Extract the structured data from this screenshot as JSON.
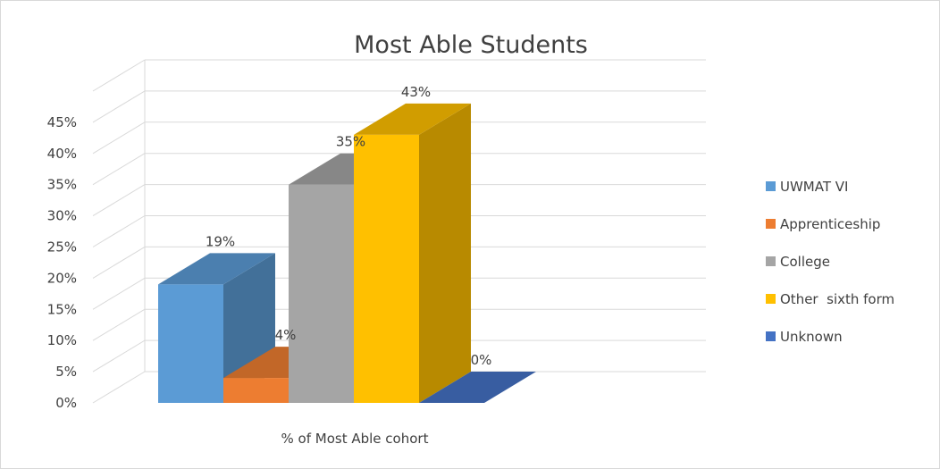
{
  "chart_data": {
    "type": "bar",
    "title": "Most Able Students",
    "xlabel": "% of Most Able cohort",
    "ylabel": "",
    "ylim": [
      0,
      45
    ],
    "y_ticks": [
      "0%",
      "5%",
      "10%",
      "15%",
      "20%",
      "25%",
      "30%",
      "35%",
      "40%",
      "45%"
    ],
    "categories": [
      "% of Most Able cohort"
    ],
    "series": [
      {
        "name": "UWMAT VI",
        "value": 19,
        "label": "19%",
        "color": "#5b9bd5"
      },
      {
        "name": "Apprenticeship",
        "value": 4,
        "label": "4%",
        "color": "#ed7d31"
      },
      {
        "name": "College",
        "value": 35,
        "label": "35%",
        "color": "#a5a5a5"
      },
      {
        "name": "Other  sixth form",
        "value": 43,
        "label": "43%",
        "color": "#ffc000"
      },
      {
        "name": "Unknown",
        "value": 0,
        "label": "0%",
        "color": "#4472c4"
      }
    ],
    "legend_position": "right",
    "grid": true,
    "style": "3d"
  }
}
